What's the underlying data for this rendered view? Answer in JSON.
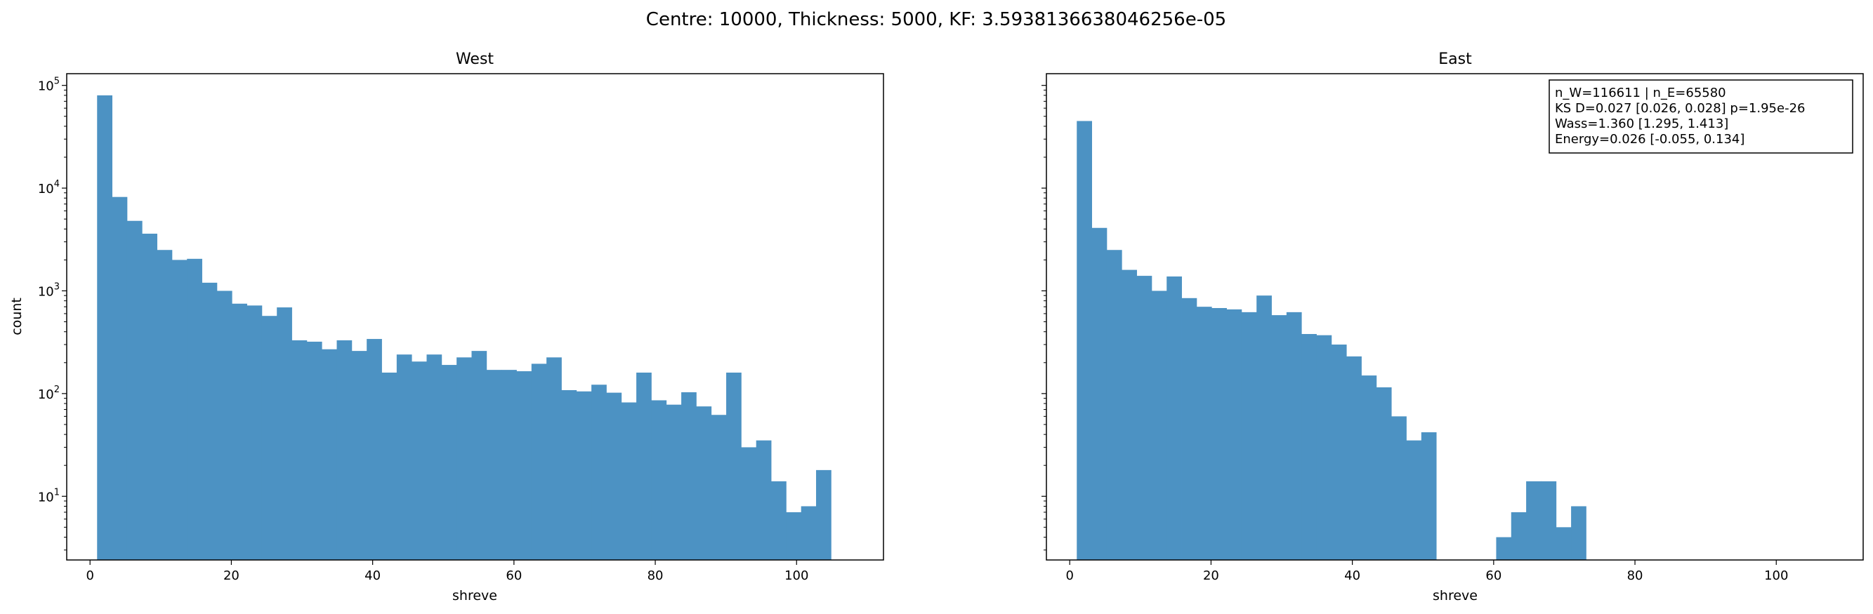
{
  "figure": {
    "suptitle": "Centre: 10000, Thickness: 5000, KF: 3.5938136638046256e-05"
  },
  "chart_data": [
    {
      "type": "bar",
      "title": "West",
      "xlabel": "shreve",
      "ylabel": "count",
      "yscale": "log",
      "xlim": [
        -3.3,
        112.3
      ],
      "ylim": [
        2.4,
        130000
      ],
      "xticks": [
        0,
        20,
        40,
        60,
        80,
        100
      ],
      "yticks": [
        10,
        100,
        1000,
        10000,
        100000
      ],
      "ytick_labels": [
        {
          "base": "10",
          "exp": "1"
        },
        {
          "base": "10",
          "exp": "2"
        },
        {
          "base": "10",
          "exp": "3"
        },
        {
          "base": "10",
          "exp": "4"
        },
        {
          "base": "10",
          "exp": "5"
        }
      ],
      "bin_start": 1,
      "bin_width": 2.12,
      "color": "#4c92c3",
      "values": [
        80000,
        8200,
        4800,
        3600,
        2500,
        2000,
        2050,
        1200,
        1000,
        750,
        720,
        570,
        690,
        330,
        320,
        270,
        330,
        260,
        340,
        160,
        240,
        205,
        240,
        190,
        225,
        260,
        170,
        170,
        165,
        195,
        225,
        108,
        105,
        122,
        102,
        82,
        160,
        86,
        78,
        103,
        75,
        62,
        160,
        30,
        35,
        14,
        7,
        8,
        18,
        0
      ]
    },
    {
      "type": "bar",
      "title": "East",
      "xlabel": "shreve",
      "yscale": "log",
      "xlim": [
        -3.3,
        112.3
      ],
      "ylim": [
        2.4,
        130000
      ],
      "xticks": [
        0,
        20,
        40,
        60,
        80,
        100
      ],
      "yticks": [
        10,
        100,
        1000,
        10000,
        100000
      ],
      "bin_start": 1,
      "bin_width": 2.12,
      "color": "#4c92c3",
      "values": [
        45000,
        4100,
        2500,
        1600,
        1400,
        1000,
        1380,
        850,
        700,
        680,
        660,
        620,
        900,
        580,
        620,
        380,
        370,
        300,
        230,
        150,
        115,
        60,
        35,
        42,
        0,
        0,
        0,
        0,
        4,
        7,
        14,
        14,
        5,
        8,
        0,
        0,
        0,
        0,
        0,
        0,
        0,
        0,
        0,
        0,
        0,
        0,
        0,
        0,
        0,
        0
      ],
      "annotation": [
        "n_W=116611 | n_E=65580",
        "KS D=0.027 [0.026, 0.028]  p=1.95e-26",
        "Wass=1.360 [1.295, 1.413]",
        "Energy=0.026 [-0.055, 0.134]"
      ]
    }
  ]
}
